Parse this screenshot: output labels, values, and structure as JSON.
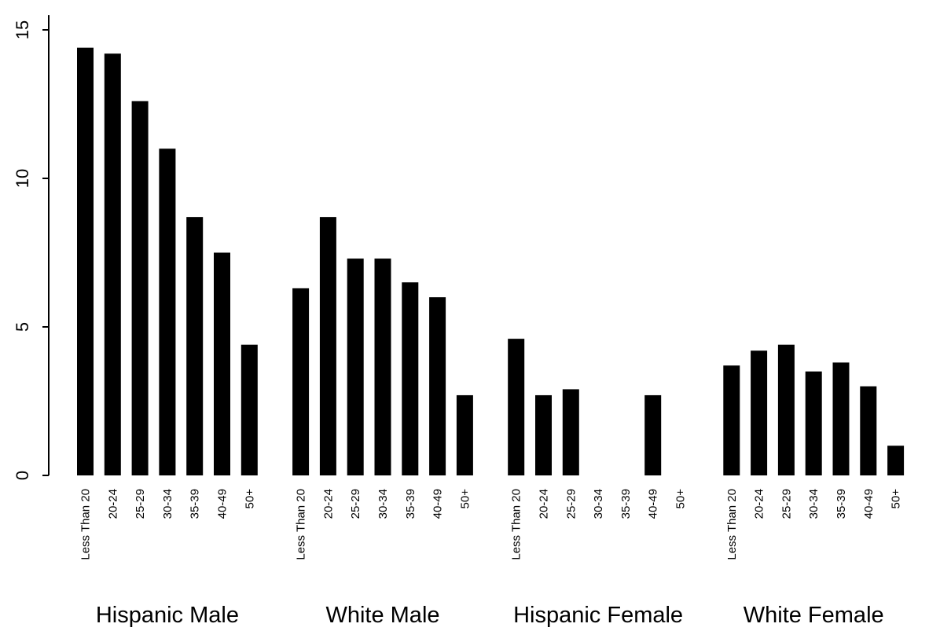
{
  "chart_data": {
    "type": "bar",
    "title": "",
    "xlabel": "",
    "ylabel": "",
    "ylim": [
      0,
      15.5
    ],
    "yticks": [
      0,
      5,
      10,
      15
    ],
    "grid": false,
    "legend": "none",
    "bar_color": "#000000",
    "categories": [
      "Less Than 20",
      "20-24",
      "25-29",
      "30-34",
      "35-39",
      "40-49",
      "50+"
    ],
    "groups": [
      {
        "label": "Hispanic Male",
        "values": [
          14.4,
          14.2,
          12.6,
          11.0,
          8.7,
          7.5,
          4.4
        ]
      },
      {
        "label": "White Male",
        "values": [
          6.3,
          8.7,
          7.3,
          7.3,
          6.5,
          6.0,
          2.7
        ]
      },
      {
        "label": "Hispanic Female",
        "values": [
          4.6,
          2.7,
          2.9,
          0,
          0,
          2.7,
          0
        ]
      },
      {
        "label": "White Female",
        "values": [
          3.7,
          4.2,
          4.4,
          3.5,
          3.8,
          3.0,
          1.0
        ]
      }
    ]
  }
}
